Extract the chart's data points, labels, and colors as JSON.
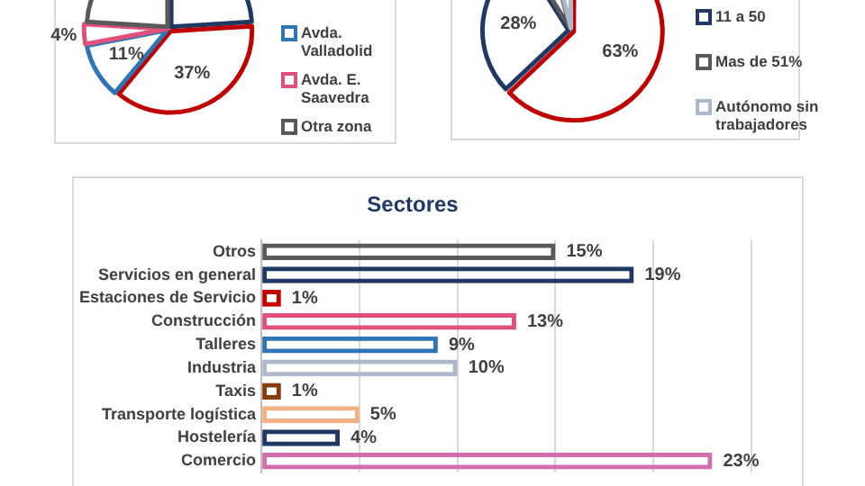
{
  "chart_data": [
    {
      "type": "pie",
      "categories": [
        null,
        null,
        "Avda. Valladolid",
        "Avda. E. Saavedra",
        "Otra zona"
      ],
      "values": [
        24,
        37,
        11,
        4,
        24
      ],
      "colors": [
        "#1f3864",
        "#c00000",
        "#2e75b6",
        "#e0507a",
        "#595959"
      ],
      "value_labels": [
        null,
        "37%",
        "11%",
        "4%",
        null
      ],
      "legend": "right"
    },
    {
      "type": "pie",
      "categories": [
        null,
        "11 a 50",
        "Mas de 51%",
        "Autónomo sin trabajadores"
      ],
      "values": [
        63,
        28,
        5,
        4
      ],
      "colors": [
        "#c00000",
        "#1f3864",
        "#595959",
        "#adb9ca"
      ],
      "value_labels": [
        "63%",
        "28%",
        null,
        null
      ],
      "legend": "right"
    },
    {
      "type": "bar",
      "orientation": "horizontal",
      "title": "Sectores",
      "categories": [
        "Otros",
        "Servicios en general",
        "Estaciones de Servicio",
        "Construcción",
        "Talleres",
        "Industria",
        "Taxis",
        "Transporte logística",
        "Hostelería",
        "Comercio"
      ],
      "values": [
        15,
        19,
        1,
        13,
        9,
        10,
        1,
        5,
        4,
        23
      ],
      "colors": [
        "#595959",
        "#1f3864",
        "#c00000",
        "#e0507a",
        "#2e75b6",
        "#adb9ca",
        "#843c0c",
        "#f4b183",
        "#1f3864",
        "#d36fb0"
      ],
      "value_labels": [
        "15%",
        "19%",
        "1%",
        "13%",
        "9%",
        "10%",
        "1%",
        "5%",
        "4%",
        "23%"
      ],
      "xlim": [
        0,
        25
      ],
      "xticks": [
        {
          "value": 0,
          "label": null
        },
        {
          "value": 5,
          "label": null
        },
        {
          "value": 10,
          "label": null
        },
        {
          "value": 15,
          "label": null
        },
        {
          "value": 20,
          "label": null
        },
        {
          "value": 25,
          "label": null
        }
      ],
      "grid": "x",
      "tick_labels": "y",
      "legend": false
    }
  ]
}
